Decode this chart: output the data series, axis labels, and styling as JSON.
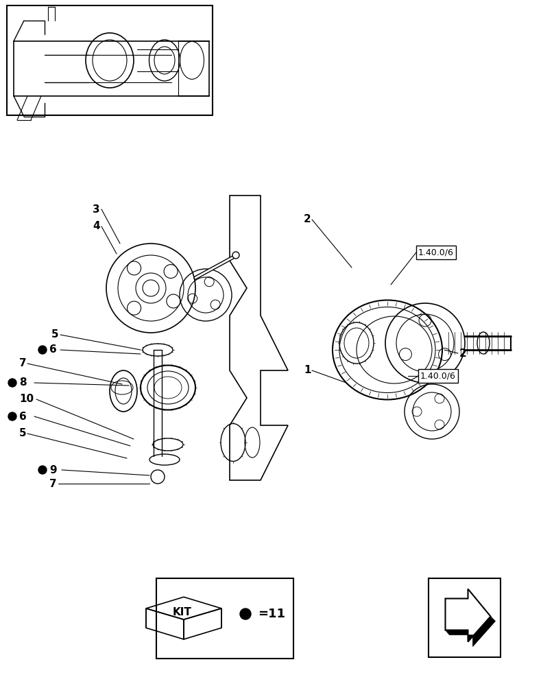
{
  "bg_color": "#ffffff",
  "fig_width": 8.08,
  "fig_height": 10.0
}
